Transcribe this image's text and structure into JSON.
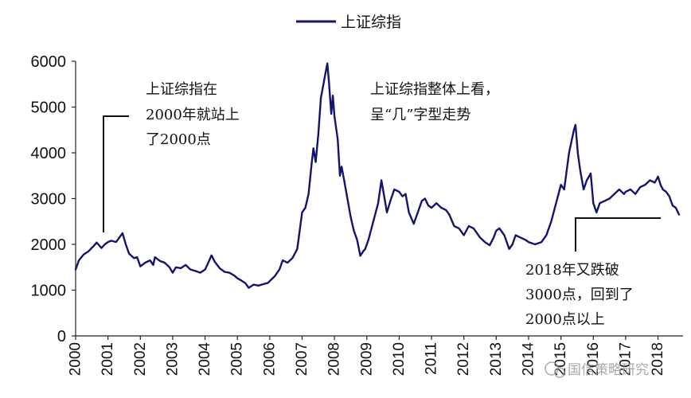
{
  "chart_data": {
    "type": "line",
    "title": "",
    "xlabel": "",
    "ylabel": "",
    "x_tick_labels": [
      "2000",
      "2001",
      "2002",
      "2003",
      "2004",
      "2005",
      "2006",
      "2007",
      "2008",
      "2009",
      "2010",
      "2011",
      "2012",
      "2013",
      "2014",
      "2015",
      "2016",
      "2017",
      "2018"
    ],
    "y_ticks": [
      0,
      1000,
      2000,
      3000,
      4000,
      5000,
      6000
    ],
    "xlim": [
      2000.0,
      2018.7
    ],
    "ylim": [
      0,
      6000
    ],
    "grid": false,
    "legend_position": "top-center",
    "series": [
      {
        "name": "上证综指",
        "color": "#14146e",
        "points": [
          [
            2000.0,
            1450
          ],
          [
            2000.1,
            1650
          ],
          [
            2000.25,
            1780
          ],
          [
            2000.4,
            1850
          ],
          [
            2000.55,
            1960
          ],
          [
            2000.65,
            2040
          ],
          [
            2000.8,
            1920
          ],
          [
            2000.9,
            2000
          ],
          [
            2001.0,
            2050
          ],
          [
            2001.1,
            2080
          ],
          [
            2001.25,
            2050
          ],
          [
            2001.35,
            2150
          ],
          [
            2001.45,
            2245
          ],
          [
            2001.55,
            2000
          ],
          [
            2001.65,
            1800
          ],
          [
            2001.8,
            1700
          ],
          [
            2001.9,
            1720
          ],
          [
            2002.0,
            1520
          ],
          [
            2002.15,
            1600
          ],
          [
            2002.3,
            1650
          ],
          [
            2002.4,
            1550
          ],
          [
            2002.45,
            1720
          ],
          [
            2002.6,
            1640
          ],
          [
            2002.75,
            1600
          ],
          [
            2002.9,
            1500
          ],
          [
            2003.0,
            1380
          ],
          [
            2003.1,
            1500
          ],
          [
            2003.25,
            1480
          ],
          [
            2003.4,
            1550
          ],
          [
            2003.55,
            1450
          ],
          [
            2003.7,
            1420
          ],
          [
            2003.85,
            1380
          ],
          [
            2004.0,
            1450
          ],
          [
            2004.1,
            1600
          ],
          [
            2004.2,
            1760
          ],
          [
            2004.3,
            1620
          ],
          [
            2004.45,
            1480
          ],
          [
            2004.6,
            1400
          ],
          [
            2004.75,
            1380
          ],
          [
            2004.9,
            1320
          ],
          [
            2005.0,
            1260
          ],
          [
            2005.1,
            1220
          ],
          [
            2005.25,
            1150
          ],
          [
            2005.35,
            1050
          ],
          [
            2005.5,
            1120
          ],
          [
            2005.65,
            1100
          ],
          [
            2005.8,
            1130
          ],
          [
            2005.95,
            1160
          ],
          [
            2006.0,
            1200
          ],
          [
            2006.15,
            1300
          ],
          [
            2006.3,
            1450
          ],
          [
            2006.4,
            1650
          ],
          [
            2006.55,
            1600
          ],
          [
            2006.7,
            1700
          ],
          [
            2006.85,
            1900
          ],
          [
            2007.0,
            2700
          ],
          [
            2007.1,
            2800
          ],
          [
            2007.2,
            3100
          ],
          [
            2007.3,
            3800
          ],
          [
            2007.35,
            4100
          ],
          [
            2007.42,
            3800
          ],
          [
            2007.5,
            4400
          ],
          [
            2007.58,
            5200
          ],
          [
            2007.7,
            5650
          ],
          [
            2007.78,
            5954
          ],
          [
            2007.83,
            5550
          ],
          [
            2007.9,
            4850
          ],
          [
            2007.95,
            5250
          ],
          [
            2008.0,
            4800
          ],
          [
            2008.1,
            4300
          ],
          [
            2008.17,
            3500
          ],
          [
            2008.22,
            3700
          ],
          [
            2008.3,
            3400
          ],
          [
            2008.4,
            3000
          ],
          [
            2008.5,
            2600
          ],
          [
            2008.6,
            2300
          ],
          [
            2008.7,
            2100
          ],
          [
            2008.8,
            1750
          ],
          [
            2008.88,
            1840
          ],
          [
            2008.95,
            1900
          ],
          [
            2009.05,
            2100
          ],
          [
            2009.2,
            2500
          ],
          [
            2009.35,
            2900
          ],
          [
            2009.45,
            3400
          ],
          [
            2009.55,
            3000
          ],
          [
            2009.62,
            2700
          ],
          [
            2009.75,
            3000
          ],
          [
            2009.85,
            3200
          ],
          [
            2010.0,
            3150
          ],
          [
            2010.1,
            3050
          ],
          [
            2010.2,
            3100
          ],
          [
            2010.3,
            2700
          ],
          [
            2010.45,
            2450
          ],
          [
            2010.55,
            2650
          ],
          [
            2010.7,
            2950
          ],
          [
            2010.8,
            3000
          ],
          [
            2010.9,
            2850
          ],
          [
            2011.0,
            2800
          ],
          [
            2011.15,
            2900
          ],
          [
            2011.3,
            2800
          ],
          [
            2011.45,
            2750
          ],
          [
            2011.55,
            2650
          ],
          [
            2011.7,
            2400
          ],
          [
            2011.85,
            2350
          ],
          [
            2012.0,
            2200
          ],
          [
            2012.15,
            2400
          ],
          [
            2012.3,
            2350
          ],
          [
            2012.5,
            2150
          ],
          [
            2012.65,
            2050
          ],
          [
            2012.8,
            1980
          ],
          [
            2012.92,
            2150
          ],
          [
            2013.0,
            2300
          ],
          [
            2013.1,
            2350
          ],
          [
            2013.25,
            2200
          ],
          [
            2013.4,
            1900
          ],
          [
            2013.5,
            2000
          ],
          [
            2013.6,
            2200
          ],
          [
            2013.75,
            2150
          ],
          [
            2013.9,
            2100
          ],
          [
            2014.0,
            2050
          ],
          [
            2014.2,
            2000
          ],
          [
            2014.4,
            2050
          ],
          [
            2014.55,
            2200
          ],
          [
            2014.7,
            2500
          ],
          [
            2014.85,
            2900
          ],
          [
            2015.0,
            3300
          ],
          [
            2015.1,
            3200
          ],
          [
            2015.25,
            4000
          ],
          [
            2015.4,
            4500
          ],
          [
            2015.45,
            4611
          ],
          [
            2015.52,
            4000
          ],
          [
            2015.6,
            3600
          ],
          [
            2015.7,
            3200
          ],
          [
            2015.8,
            3400
          ],
          [
            2015.92,
            3550
          ],
          [
            2016.0,
            2900
          ],
          [
            2016.1,
            2700
          ],
          [
            2016.2,
            2900
          ],
          [
            2016.35,
            2950
          ],
          [
            2016.5,
            3000
          ],
          [
            2016.65,
            3100
          ],
          [
            2016.8,
            3200
          ],
          [
            2016.95,
            3100
          ],
          [
            2017.0,
            3150
          ],
          [
            2017.15,
            3200
          ],
          [
            2017.3,
            3100
          ],
          [
            2017.45,
            3250
          ],
          [
            2017.6,
            3300
          ],
          [
            2017.75,
            3400
          ],
          [
            2017.9,
            3350
          ],
          [
            2018.0,
            3480
          ],
          [
            2018.08,
            3300
          ],
          [
            2018.15,
            3200
          ],
          [
            2018.25,
            3150
          ],
          [
            2018.35,
            3050
          ],
          [
            2018.45,
            2850
          ],
          [
            2018.55,
            2800
          ],
          [
            2018.65,
            2650
          ]
        ]
      }
    ],
    "annotations": [
      {
        "lines": [
          "上证综指在",
          "2000年就站上",
          "了2000点"
        ]
      },
      {
        "lines": [
          "上证综指整体上看，",
          "呈“几”字型走势"
        ]
      },
      {
        "lines": [
          "2018年又跌破",
          "3000点，回到了",
          "2000点以上"
        ]
      }
    ]
  },
  "watermark": "国信策略研究"
}
